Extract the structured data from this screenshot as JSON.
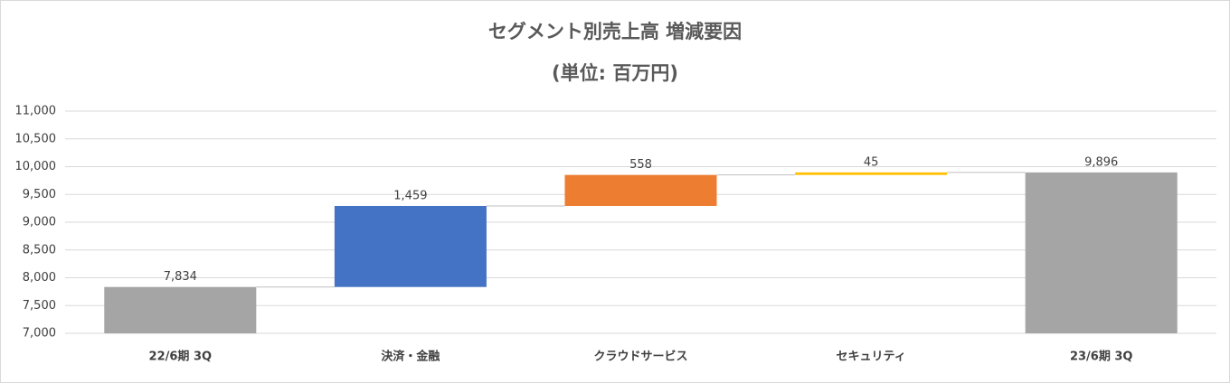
{
  "chart_data": {
    "type": "waterfall",
    "title": "セグメント別売上高 増減要因",
    "subtitle": "(単位: 百万円)",
    "categories": [
      "22/6期 3Q",
      "決済・金融",
      "クラウドサービス",
      "セキュリティ",
      "23/6期 3Q"
    ],
    "values": [
      7834,
      1459,
      558,
      45,
      9896
    ],
    "value_labels": [
      "7,834",
      "1,459",
      "558",
      "45",
      "9,896"
    ],
    "measure": [
      "absolute",
      "relative",
      "relative",
      "relative",
      "absolute"
    ],
    "colors": [
      "#a5a5a5",
      "#4472c4",
      "#ed7d31",
      "#ffc000",
      "#a5a5a5"
    ],
    "ylim": [
      7000,
      11000
    ],
    "yticks": [
      {
        "value": 7000,
        "label": "7,000"
      },
      {
        "value": 7500,
        "label": "7,500"
      },
      {
        "value": 8000,
        "label": "8,000"
      },
      {
        "value": 8500,
        "label": "8,500"
      },
      {
        "value": 9000,
        "label": "9,000"
      },
      {
        "value": 9500,
        "label": "9,500"
      },
      {
        "value": 10000,
        "label": "10,000"
      },
      {
        "value": 10500,
        "label": "10,500"
      },
      {
        "value": 11000,
        "label": "11,000"
      }
    ],
    "grid": true
  }
}
